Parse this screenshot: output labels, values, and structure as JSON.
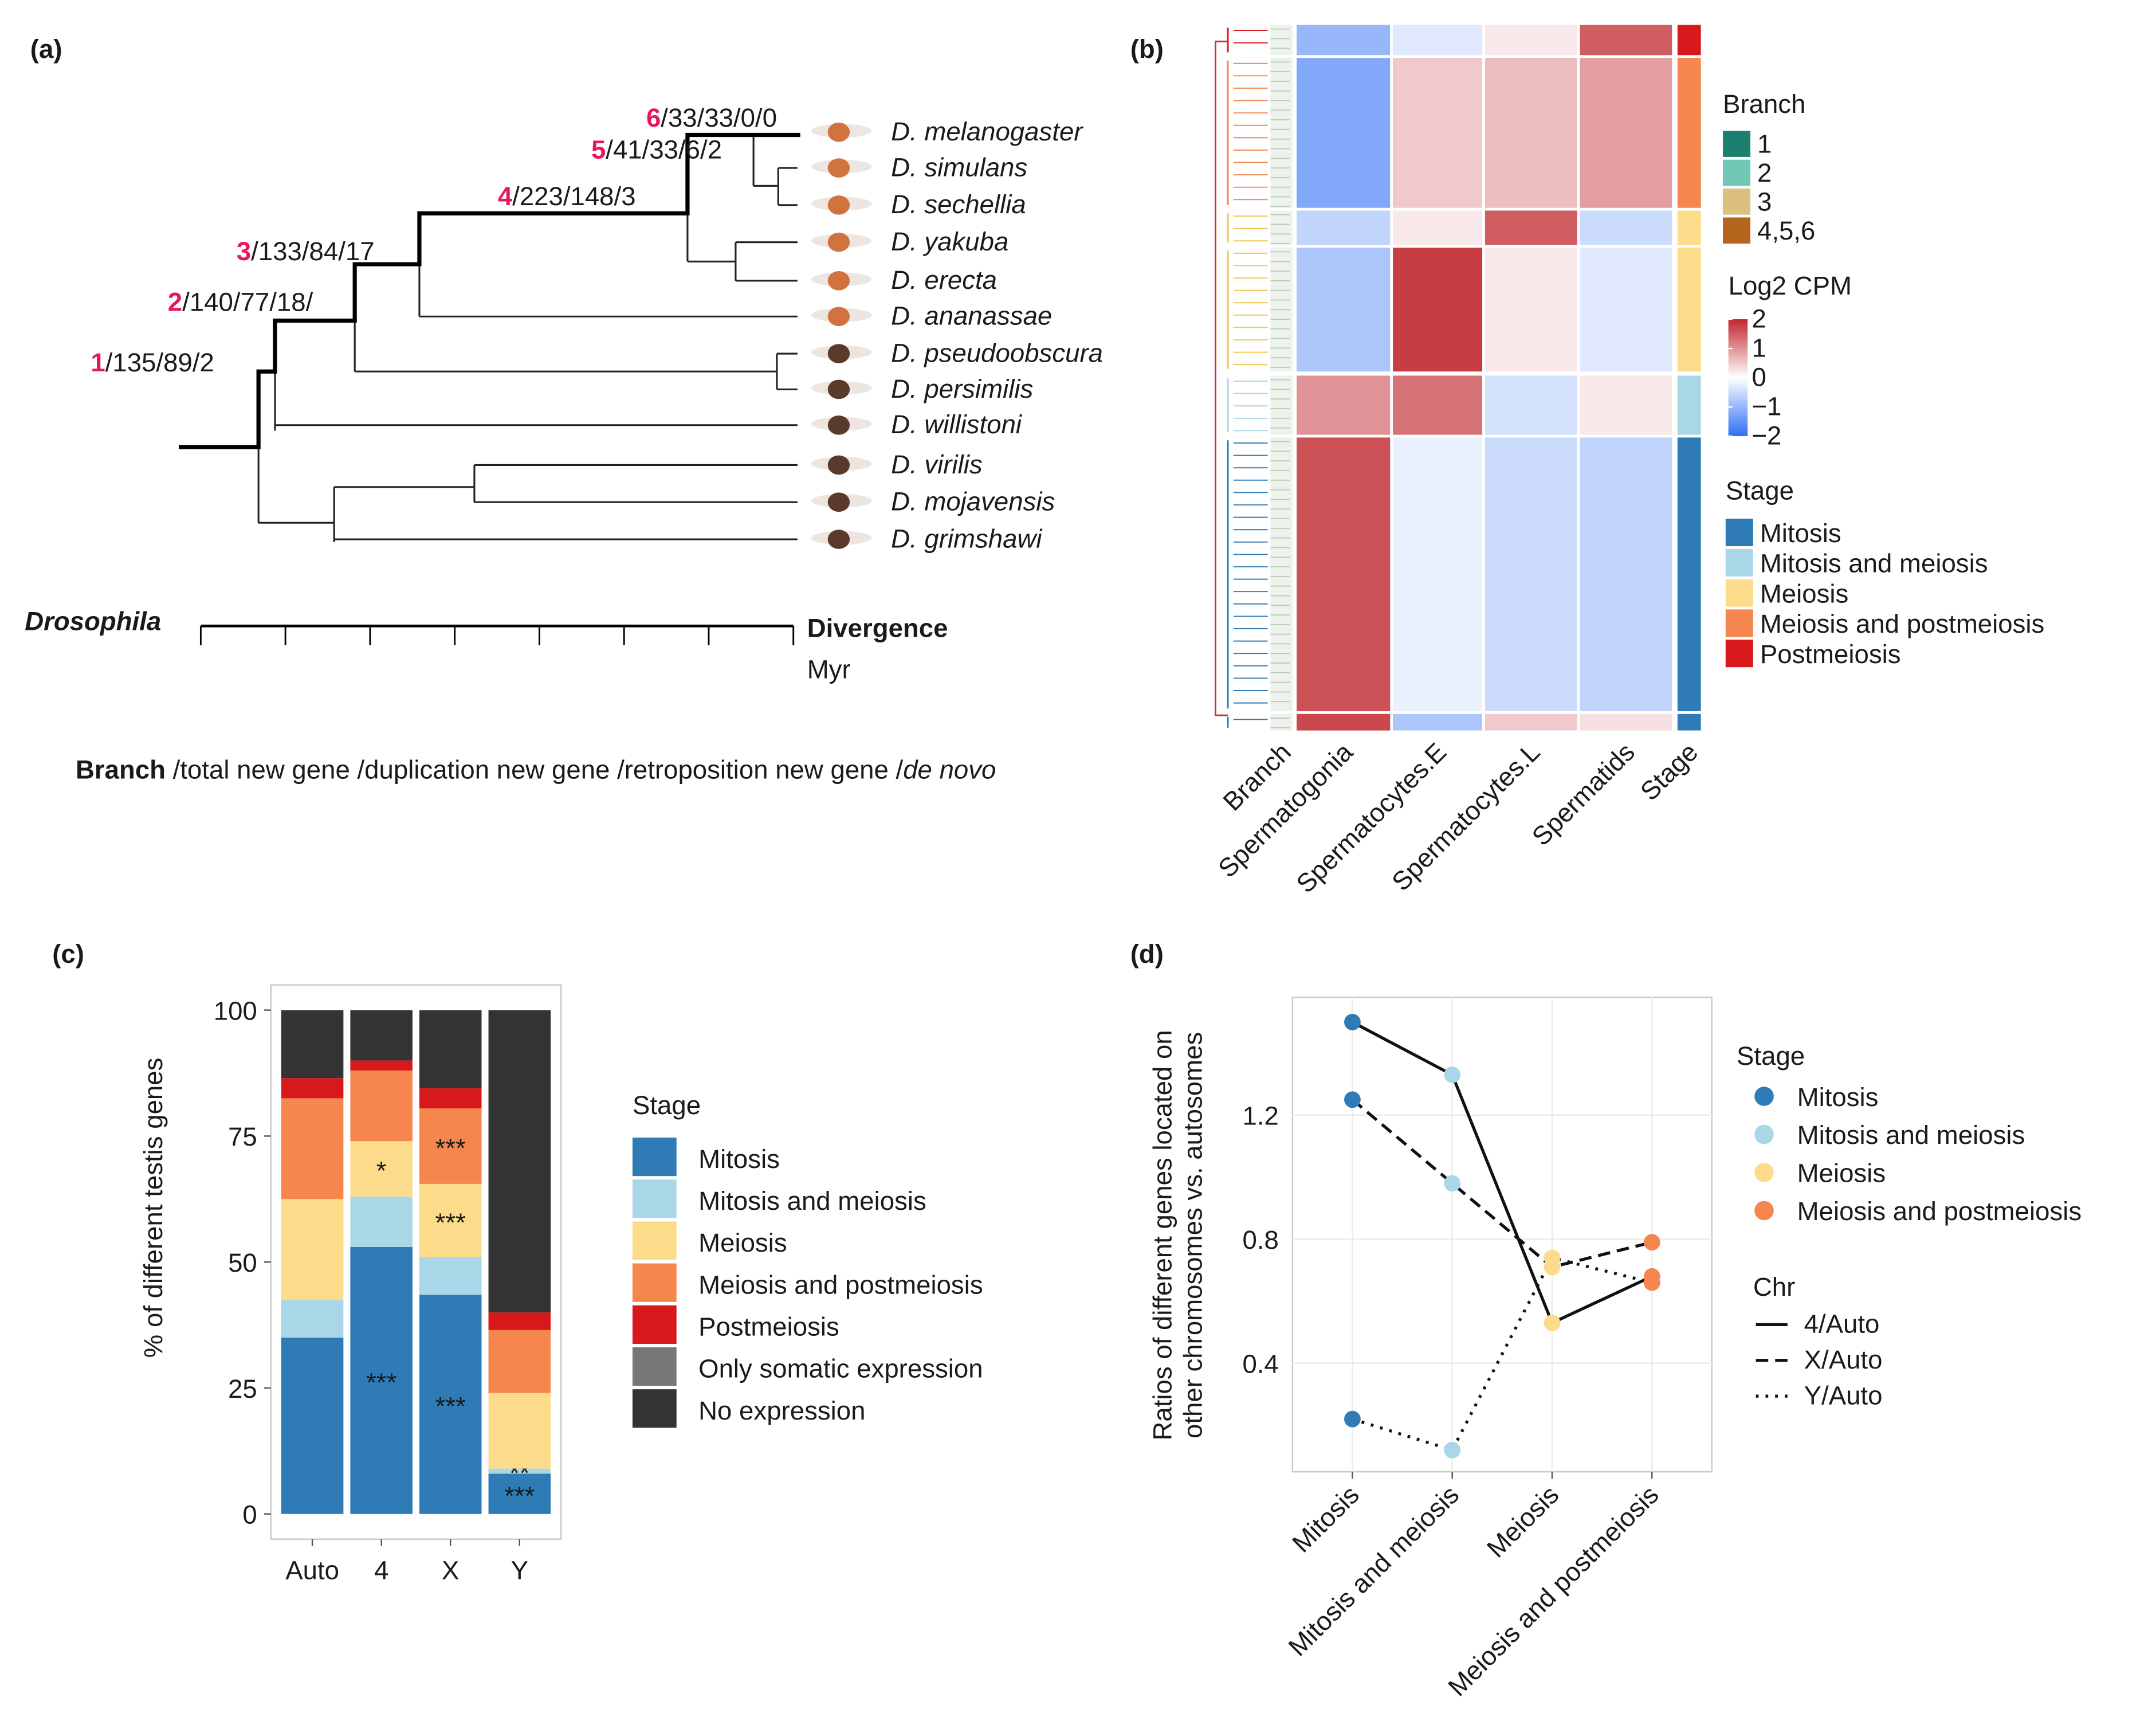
{
  "chart_data": [
    {
      "type": "tree",
      "panel": "(a)",
      "branch_labels": [
        {
          "branch": "6",
          "counts": "/33/33/0/0"
        },
        {
          "branch": "5",
          "counts": "/41/33/6/2"
        },
        {
          "branch": "4",
          "counts": "/223/148/3"
        },
        {
          "branch": "3",
          "counts": "/133/84/17"
        },
        {
          "branch": "2",
          "counts": "/140/77/18/"
        },
        {
          "branch": "1",
          "counts": "/135/89/2"
        }
      ],
      "branch_color": "#e8175d",
      "species": [
        "D. melanogaster",
        "D. simulans",
        "D. sechellia",
        "D. yakuba",
        "D. erecta",
        "D. ananassae",
        "D. pseudoobscura",
        "D. persimilis",
        "D. willistoni",
        "D. virilis",
        "D. mojavensis",
        "D. grimshawi"
      ],
      "axis_label": "Drosophila",
      "axis_title": "Divergence",
      "axis_unit": "Myr",
      "footer": [
        {
          "text": "Branch",
          "style": "bold"
        },
        {
          "text": " /total new gene /duplication new gene /retroposition new gene /",
          "style": "normal"
        },
        {
          "text": "de novo",
          "style": "italic"
        }
      ]
    },
    {
      "type": "heatmap",
      "panel": "(b)",
      "columns": [
        "Branch",
        "Spermatogonia",
        "Spermatocytes.E",
        "Spermatocytes.L",
        "Spermatids",
        "Stage"
      ],
      "values": [
        [
          -1.0,
          -0.3,
          0.2,
          1.5
        ],
        [
          -1.2,
          0.5,
          0.6,
          0.9
        ],
        [
          -0.6,
          0.2,
          1.5,
          -0.5
        ],
        [
          -0.8,
          1.8,
          0.2,
          -0.3
        ],
        [
          1.0,
          1.3,
          -0.4,
          0.2
        ],
        [
          1.6,
          -0.2,
          -0.5,
          -0.6
        ],
        [
          1.7,
          -0.8,
          0.5,
          0.3
        ]
      ],
      "row_stage": [
        4,
        3,
        2,
        2,
        1,
        0,
        0
      ],
      "color_scale": {
        "title": "Log2 CPM",
        "lim": [
          -2,
          2
        ],
        "ticks": [
          2,
          1,
          0,
          {
            "value": -1,
            "label": "−1"
          },
          {
            "value": -2,
            "label": "−2"
          }
        ],
        "low": "#2f6ff5",
        "mid": "#ffffff",
        "high": "#c0272d"
      },
      "branch_legend": {
        "title": "Branch",
        "labels": [
          "1",
          "2",
          "3",
          "4,5,6"
        ],
        "colors": [
          "#1b7f6f",
          "#70c8b4",
          "#dcc07e",
          "#b5651d"
        ]
      },
      "stage_legend": {
        "title": "Stage",
        "labels": [
          "Mitosis",
          "Mitosis and meiosis",
          "Meiosis",
          "Meiosis and postmeiosis",
          "Postmeiosis"
        ],
        "colors": [
          "#2e7bb6",
          "#a9d7e8",
          "#fcdc8a",
          "#f4864e",
          "#d7191c"
        ]
      }
    },
    {
      "type": "stacked_bar",
      "panel": "(c)",
      "categories": [
        "Auto",
        "4",
        "X",
        "Y"
      ],
      "ylabel": "% of different testis genes",
      "ylim": [
        -5,
        105
      ],
      "yticks": [
        0,
        25,
        50,
        75,
        100
      ],
      "legend_title": "Stage",
      "series": [
        {
          "name": "Mitosis",
          "color": "#2e7bb6",
          "values": [
            35,
            53,
            43.5,
            8
          ],
          "annotations": [
            null,
            {
              "text": "***",
              "color": "#d7191c"
            },
            {
              "text": "***",
              "color": "#d7191c"
            },
            {
              "text": "***",
              "color": "#111111"
            }
          ]
        },
        {
          "name": "Mitosis and meiosis",
          "color": "#a9d7e8",
          "values": [
            7.5,
            10,
            7.5,
            1
          ],
          "annotations": [
            null,
            null,
            null,
            {
              "text": "**",
              "color": "#111111"
            }
          ]
        },
        {
          "name": "Meiosis",
          "color": "#fcdc8a",
          "values": [
            20,
            11,
            14.5,
            15
          ],
          "annotations": [
            null,
            {
              "text": "*",
              "color": "#111111"
            },
            {
              "text": "***",
              "color": "#111111"
            },
            null
          ]
        },
        {
          "name": "Meiosis and postmeiosis",
          "color": "#f4864e",
          "values": [
            20,
            14,
            15,
            12.5
          ],
          "annotations": [
            null,
            null,
            {
              "text": "***",
              "color": "#111111"
            },
            null
          ]
        },
        {
          "name": "Postmeiosis",
          "color": "#d7191c",
          "values": [
            4,
            2,
            4,
            3.5
          ]
        },
        {
          "name": "Only somatic expression",
          "color": "#777777",
          "values": [
            0,
            0,
            0,
            0
          ]
        },
        {
          "name": "No expression",
          "color": "#333333",
          "values": [
            13.5,
            10,
            15.5,
            60
          ]
        }
      ]
    },
    {
      "type": "line",
      "panel": "(d)",
      "categories": [
        "Mitosis",
        "Mitosis and meiosis",
        "Meiosis",
        "Meiosis and postmeiosis"
      ],
      "category_colors": [
        "#2e7bb6",
        "#a9d7e8",
        "#fcdc8a",
        "#f4864e"
      ],
      "ylabel": [
        "Ratios of different genes located on",
        "other chromosomes vs. autosomes"
      ],
      "ylim": [
        0.05,
        1.58
      ],
      "yticks": [
        0.4,
        0.8,
        1.2
      ],
      "grid": true,
      "legend_title": "Stage",
      "line_legend_title": "Chr",
      "series": [
        {
          "name": "4/Auto",
          "linestyle": "solid",
          "values": [
            1.5,
            1.33,
            0.53,
            0.68
          ]
        },
        {
          "name": "X/Auto",
          "linestyle": "dashed",
          "values": [
            1.25,
            0.98,
            0.71,
            0.79
          ]
        },
        {
          "name": "Y/Auto",
          "linestyle": "dotted",
          "values": [
            0.22,
            0.12,
            0.74,
            0.66
          ]
        }
      ]
    }
  ]
}
